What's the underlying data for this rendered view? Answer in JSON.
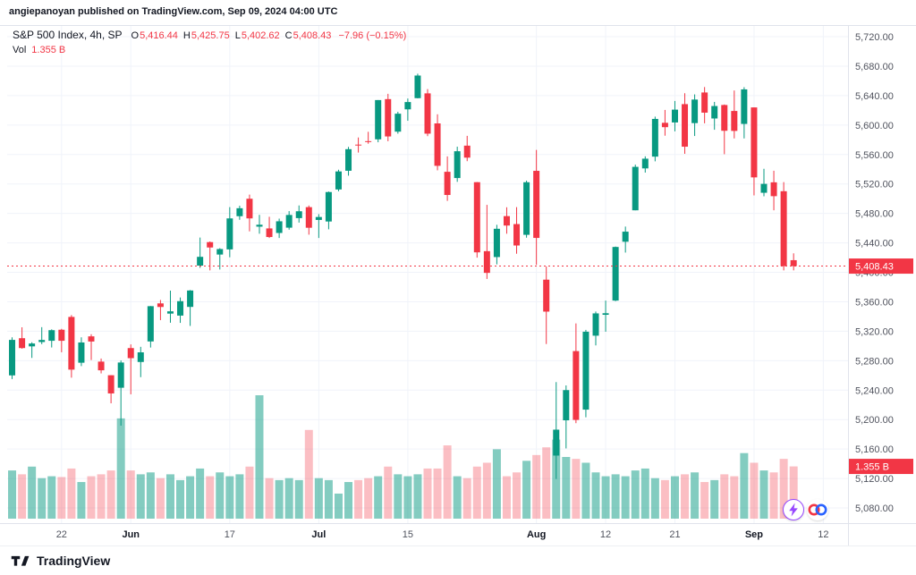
{
  "attribution": "angiepanoyan published on TradingView.com, Sep 09, 2024 04:00 UTC",
  "legend": {
    "title": "S&P 500 Index, 4h, SP",
    "ohlc": [
      {
        "label": "O",
        "value": "5,416.44"
      },
      {
        "label": "H",
        "value": "5,425.75"
      },
      {
        "label": "L",
        "value": "5,402.62"
      },
      {
        "label": "C",
        "value": "5,408.43"
      }
    ],
    "change": "−7.96 (−0.15%)",
    "vol_label": "Vol",
    "vol_value": "1.355 B"
  },
  "footer": {
    "brand": "TradingView"
  },
  "colors": {
    "up": "#089981",
    "down": "#f23645",
    "vol_up": "rgba(8,153,129,0.5)",
    "vol_down": "rgba(242,54,69,0.32)",
    "grid": "#f0f3fa",
    "border": "#e0e3eb",
    "axis_text": "#50535e",
    "month_text": "#131722",
    "label_bg": "#f23645",
    "label_text": "#ffffff",
    "boost_purple": "#9747ff",
    "reaction_red": "#f23645",
    "reaction_blue": "#2962ff"
  },
  "chart_data": {
    "type": "candlestick",
    "title": "S&P 500 Index, 4h, SP",
    "symbol": "S&P 500 Index",
    "timeframe": "4h",
    "exchange": "SP",
    "price_axis": {
      "min": 5080,
      "max": 5720,
      "step": 40
    },
    "last_price": 5408.43,
    "last_price_label": "5,408.43",
    "last_volume_label": "1.355 B",
    "legend_position": "top-left",
    "grid": true,
    "slots": 85,
    "x_ticks": [
      {
        "label": "22",
        "i": 5,
        "month": false
      },
      {
        "label": "Jun",
        "i": 12,
        "month": true
      },
      {
        "label": "17",
        "i": 22,
        "month": false
      },
      {
        "label": "Jul",
        "i": 31,
        "month": true
      },
      {
        "label": "15",
        "i": 40,
        "month": false
      },
      {
        "label": "Aug",
        "i": 53,
        "month": true
      },
      {
        "label": "12",
        "i": 60,
        "month": false
      },
      {
        "label": "21",
        "i": 67,
        "month": false
      },
      {
        "label": "Sep",
        "i": 75,
        "month": true
      },
      {
        "label": "12",
        "i": 82,
        "month": false
      }
    ],
    "bars": {
      "columns": [
        "date",
        "open",
        "high",
        "low",
        "close",
        "volume_billions"
      ],
      "rows": [
        [
          "May 15",
          5260.0,
          5311.7,
          5255.0,
          5308.2,
          1.25
        ],
        [
          "May 16",
          5310.5,
          5325.3,
          5296.2,
          5297.1,
          1.15
        ],
        [
          "May 17",
          5299.4,
          5305.0,
          5283.7,
          5303.3,
          1.35
        ],
        [
          "May 20",
          5305.3,
          5325.5,
          5302.4,
          5308.1,
          1.05
        ],
        [
          "May 21",
          5307.0,
          5322.5,
          5297.9,
          5321.4,
          1.1
        ],
        [
          "May 22",
          5322.0,
          5323.2,
          5291.4,
          5307.0,
          1.08
        ],
        [
          "May 23",
          5339.4,
          5341.9,
          5256.9,
          5267.8,
          1.3
        ],
        [
          "May 24",
          5277.2,
          5311.7,
          5272.6,
          5304.7,
          0.95
        ],
        [
          "May 28",
          5313.0,
          5315.9,
          5280.9,
          5306.0,
          1.1
        ],
        [
          "May 29",
          5278.7,
          5282.9,
          5262.7,
          5266.9,
          1.15
        ],
        [
          "May 30",
          5260.2,
          5260.2,
          5222.1,
          5235.5,
          1.25
        ],
        [
          "May 31",
          5243.2,
          5280.3,
          5191.7,
          5277.5,
          2.6
        ],
        [
          "Jun 3",
          5297.1,
          5302.1,
          5234.3,
          5283.4,
          1.25
        ],
        [
          "Jun 4",
          5278.2,
          5298.8,
          5257.6,
          5291.3,
          1.15
        ],
        [
          "Jun 5",
          5306.1,
          5354.2,
          5297.8,
          5354.0,
          1.2
        ],
        [
          "Jun 6",
          5357.8,
          5362.4,
          5335.0,
          5352.9,
          1.05
        ],
        [
          "Jun 7",
          5343.9,
          5375.1,
          5331.5,
          5347.0,
          1.15
        ],
        [
          "Jun 10",
          5341.2,
          5365.8,
          5331.3,
          5360.8,
          1.0
        ],
        [
          "Jun 11",
          5353.0,
          5375.9,
          5327.2,
          5375.3,
          1.1
        ],
        [
          "Jun 12",
          5409.1,
          5447.2,
          5406.0,
          5421.0,
          1.3
        ],
        [
          "Jun 13",
          5441.0,
          5441.9,
          5402.6,
          5433.7,
          1.1
        ],
        [
          "Jun 14",
          5424.1,
          5432.8,
          5403.8,
          5431.6,
          1.2
        ],
        [
          "Jun 17",
          5431.1,
          5488.5,
          5420.4,
          5473.2,
          1.1
        ],
        [
          "Jun 18",
          5476.2,
          5490.4,
          5471.3,
          5487.0,
          1.15
        ],
        [
          "Jun 20",
          5499.9,
          5505.5,
          5455.6,
          5473.2,
          1.35
        ],
        [
          "Jun 21",
          5462.0,
          5478.0,
          5452.3,
          5464.6,
          3.2
        ],
        [
          "Jun 24",
          5459.6,
          5475.4,
          5446.6,
          5447.9,
          1.05
        ],
        [
          "Jun 25",
          5453.4,
          5472.9,
          5446.6,
          5469.3,
          1.0
        ],
        [
          "Jun 26",
          5460.6,
          5483.1,
          5457.9,
          5477.9,
          1.05
        ],
        [
          "Jun 27",
          5473.6,
          5490.8,
          5467.5,
          5482.9,
          1.0
        ],
        [
          "Jun 28",
          5488.5,
          5490.7,
          5451.1,
          5460.5,
          2.3
        ],
        [
          "Jul 1",
          5471.1,
          5479.0,
          5446.6,
          5475.1,
          1.05
        ],
        [
          "Jul 2",
          5469.0,
          5509.7,
          5458.4,
          5509.0,
          1.0
        ],
        [
          "Jul 3",
          5512.5,
          5539.3,
          5510.0,
          5537.0,
          0.65
        ],
        [
          "Jul 5",
          5537.9,
          5570.3,
          5531.2,
          5567.2,
          0.95
        ],
        [
          "Jul 8",
          5573.4,
          5583.1,
          5562.6,
          5572.9,
          1.0
        ],
        [
          "Jul 9",
          5578.1,
          5590.8,
          5574.6,
          5577.0,
          1.05
        ],
        [
          "Jul 10",
          5580.6,
          5633.9,
          5576.6,
          5633.9,
          1.1
        ],
        [
          "Jul 11",
          5635.2,
          5642.4,
          5578.0,
          5584.5,
          1.35
        ],
        [
          "Jul 12",
          5591.0,
          5618.0,
          5588.3,
          5615.4,
          1.15
        ],
        [
          "Jul 15",
          5621.3,
          5636.0,
          5605.8,
          5631.2,
          1.1
        ],
        [
          "Jul 16",
          5636.5,
          5669.7,
          5636.2,
          5667.2,
          1.15
        ],
        [
          "Jul 17",
          5643.0,
          5648.8,
          5584.9,
          5588.3,
          1.3
        ],
        [
          "Jul 18",
          5602.2,
          5614.6,
          5538.5,
          5544.6,
          1.3
        ],
        [
          "Jul 19",
          5536.5,
          5557.4,
          5497.0,
          5505.0,
          1.9
        ],
        [
          "Jul 22",
          5528.0,
          5570.6,
          5522.8,
          5564.4,
          1.1
        ],
        [
          "Jul 23",
          5572.0,
          5585.3,
          5550.9,
          5555.7,
          1.05
        ],
        [
          "Jul 24",
          5522.4,
          5522.6,
          5419.9,
          5427.1,
          1.35
        ],
        [
          "Jul 25",
          5428.7,
          5491.6,
          5391.0,
          5399.2,
          1.45
        ],
        [
          "Jul 26",
          5420.7,
          5464.5,
          5410.8,
          5459.1,
          1.8
        ],
        [
          "Jul 29",
          5476.3,
          5488.3,
          5452.4,
          5463.5,
          1.1
        ],
        [
          "Jul 30",
          5465.5,
          5488.5,
          5425.2,
          5436.4,
          1.2
        ],
        [
          "Jul 31",
          5450.9,
          5524.5,
          5447.0,
          5522.3,
          1.5
        ],
        [
          "Aug 1",
          5537.8,
          5566.2,
          5410.1,
          5446.7,
          1.65
        ],
        [
          "Aug 2",
          5390.0,
          5408.0,
          5302.6,
          5346.6,
          1.85
        ],
        [
          "Aug 5",
          5151.1,
          5250.9,
          5119.3,
          5186.3,
          2.05
        ],
        [
          "Aug 6",
          5199.0,
          5246.4,
          5160.8,
          5240.0,
          1.6
        ],
        [
          "Aug 7",
          5293.0,
          5330.6,
          5195.1,
          5199.5,
          1.55
        ],
        [
          "Aug 8",
          5213.5,
          5321.8,
          5203.1,
          5319.3,
          1.45
        ],
        [
          "Aug 9",
          5313.9,
          5346.7,
          5300.7,
          5344.2,
          1.2
        ],
        [
          "Aug 12",
          5342.3,
          5361.6,
          5319.3,
          5344.4,
          1.1
        ],
        [
          "Aug 13",
          5361.6,
          5435.0,
          5360.8,
          5434.4,
          1.15
        ],
        [
          "Aug 14",
          5441.5,
          5462.1,
          5426.8,
          5455.2,
          1.1
        ],
        [
          "Aug 15",
          5484.2,
          5546.2,
          5484.2,
          5543.2,
          1.25
        ],
        [
          "Aug 16",
          5541.1,
          5557.5,
          5535.4,
          5554.3,
          1.3
        ],
        [
          "Aug 19",
          5557.1,
          5611.4,
          5550.7,
          5608.3,
          1.05
        ],
        [
          "Aug 20",
          5603.0,
          5620.5,
          5585.5,
          5597.1,
          1.0
        ],
        [
          "Aug 21",
          5603.5,
          5632.7,
          5591.4,
          5620.9,
          1.1
        ],
        [
          "Aug 22",
          5628.4,
          5643.2,
          5560.9,
          5570.6,
          1.15
        ],
        [
          "Aug 23",
          5602.6,
          5641.6,
          5585.1,
          5634.6,
          1.2
        ],
        [
          "Aug 26",
          5644.2,
          5651.6,
          5602.3,
          5616.8,
          0.95
        ],
        [
          "Aug 27",
          5608.9,
          5631.4,
          5593.6,
          5625.8,
          1.0
        ],
        [
          "Aug 28",
          5627.2,
          5627.9,
          5560.4,
          5592.2,
          1.15
        ],
        [
          "Aug 29",
          5619.1,
          5646.9,
          5581.8,
          5592.0,
          1.1
        ],
        [
          "Aug 30",
          5601.5,
          5651.4,
          5581.8,
          5648.4,
          1.7
        ],
        [
          "Sep 3",
          5623.9,
          5623.9,
          5504.4,
          5528.9,
          1.45
        ],
        [
          "Sep 4",
          5508.0,
          5540.5,
          5503.2,
          5520.1,
          1.25
        ],
        [
          "Sep 5",
          5522.2,
          5537.9,
          5484.2,
          5503.4,
          1.2
        ],
        [
          "Sep 6",
          5510.1,
          5522.5,
          5402.6,
          5408.4,
          1.55
        ],
        [
          "Sep 9",
          5416.44,
          5425.75,
          5402.62,
          5408.43,
          1.355
        ]
      ]
    }
  }
}
